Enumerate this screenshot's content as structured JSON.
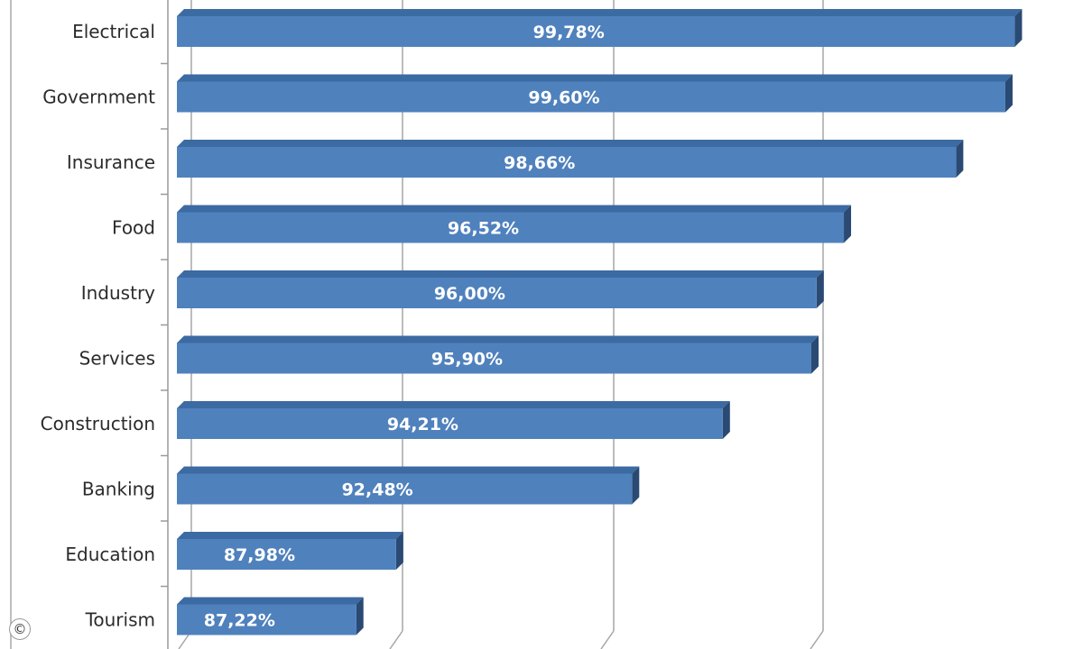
{
  "chart_data": {
    "type": "bar",
    "orientation": "horizontal",
    "categories": [
      "Electrical",
      "Government",
      "Insurance",
      "Food",
      "Industry",
      "Services",
      "Construction",
      "Banking",
      "Education",
      "Tourism"
    ],
    "values": [
      99.78,
      99.6,
      98.66,
      96.52,
      96.0,
      95.9,
      94.21,
      92.48,
      87.98,
      87.22
    ],
    "value_labels": [
      "99,78%",
      "99,60%",
      "98,66%",
      "96,52%",
      "96,00%",
      "95,90%",
      "94,21%",
      "92,48%",
      "87,98%",
      "87,22%"
    ],
    "bar_color": "#4f81bd",
    "bar_side_color": "#2a4a73",
    "bar_top_color": "#3c6aa3",
    "grid": true,
    "legend": "none"
  },
  "copyright_symbol": "©"
}
